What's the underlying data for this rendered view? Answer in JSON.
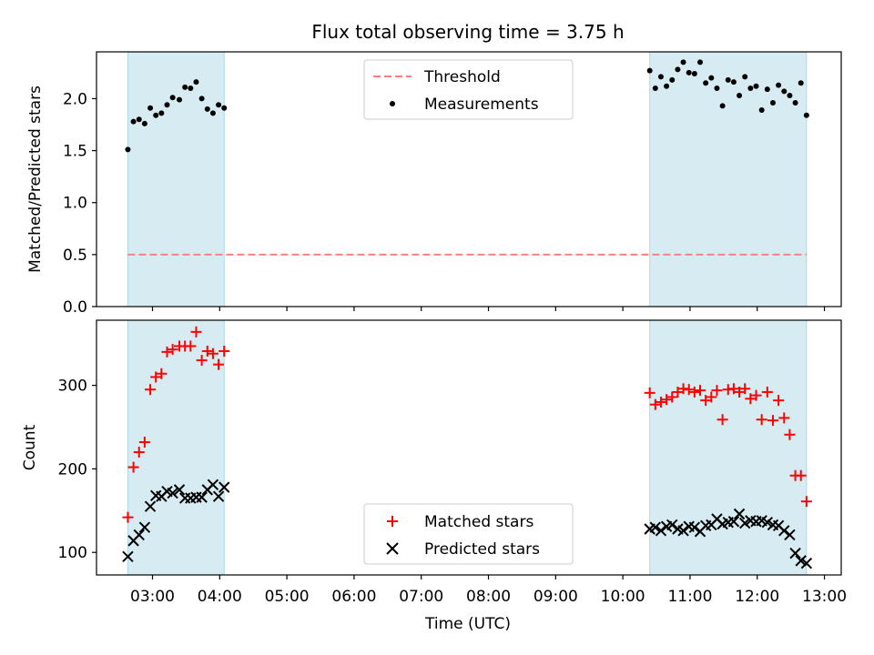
{
  "chart_data": [
    {
      "type": "scatter",
      "title": "Flux total observing time = 3.75 h",
      "ylabel": "Matched/Predicted stars",
      "xlabel": "",
      "ylim": [
        0,
        2.45
      ],
      "yticks": [
        "0.0",
        "0.5",
        "1.0",
        "1.5",
        "2.0"
      ],
      "grid": false,
      "legend": "top-center",
      "observing_windows": [
        [
          "02:38",
          "04:04"
        ],
        [
          "10:24",
          "12:44"
        ]
      ],
      "threshold": {
        "name": "Threshold",
        "value": 0.5,
        "x_range": [
          "02:38",
          "12:44"
        ],
        "color": "#ff7f7f"
      },
      "series": [
        {
          "name": "Measurements",
          "marker": "dot",
          "color": "#000000",
          "points": [
            [
              "02:38",
              1.51
            ],
            [
              "02:43",
              1.78
            ],
            [
              "02:48",
              1.8
            ],
            [
              "02:53",
              1.76
            ],
            [
              "02:58",
              1.91
            ],
            [
              "03:03",
              1.84
            ],
            [
              "03:08",
              1.86
            ],
            [
              "03:13",
              1.94
            ],
            [
              "03:18",
              2.01
            ],
            [
              "03:24",
              1.99
            ],
            [
              "03:29",
              2.11
            ],
            [
              "03:34",
              2.1
            ],
            [
              "03:39",
              2.16
            ],
            [
              "03:44",
              2.0
            ],
            [
              "03:49",
              1.9
            ],
            [
              "03:54",
              1.86
            ],
            [
              "03:59",
              1.94
            ],
            [
              "04:04",
              1.91
            ],
            [
              "10:24",
              2.27
            ],
            [
              "10:29",
              2.1
            ],
            [
              "10:34",
              2.21
            ],
            [
              "10:39",
              2.12
            ],
            [
              "10:44",
              2.18
            ],
            [
              "10:49",
              2.28
            ],
            [
              "10:54",
              2.35
            ],
            [
              "10:59",
              2.25
            ],
            [
              "11:04",
              2.24
            ],
            [
              "11:09",
              2.35
            ],
            [
              "11:14",
              2.15
            ],
            [
              "11:19",
              2.2
            ],
            [
              "11:24",
              2.1
            ],
            [
              "11:29",
              1.93
            ],
            [
              "11:34",
              2.18
            ],
            [
              "11:39",
              2.16
            ],
            [
              "11:44",
              2.03
            ],
            [
              "11:49",
              2.21
            ],
            [
              "11:54",
              2.1
            ],
            [
              "11:59",
              2.12
            ],
            [
              "12:04",
              1.89
            ],
            [
              "12:09",
              2.09
            ],
            [
              "12:14",
              1.96
            ],
            [
              "12:19",
              2.13
            ],
            [
              "12:24",
              2.07
            ],
            [
              "12:29",
              2.03
            ],
            [
              "12:34",
              1.96
            ],
            [
              "12:39",
              2.15
            ],
            [
              "12:44",
              1.84
            ]
          ]
        }
      ]
    },
    {
      "type": "scatter",
      "title": "",
      "xlabel": "Time (UTC)",
      "ylabel": "Count",
      "ylim": [
        73,
        378
      ],
      "yticks": [
        "100",
        "200",
        "300"
      ],
      "xticks": [
        "03:00",
        "04:00",
        "05:00",
        "06:00",
        "07:00",
        "08:00",
        "09:00",
        "10:00",
        "11:00",
        "12:00",
        "13:00"
      ],
      "grid": false,
      "legend": "bottom-center",
      "observing_windows": [
        [
          "02:38",
          "04:04"
        ],
        [
          "10:24",
          "12:44"
        ]
      ],
      "series": [
        {
          "name": "Matched stars",
          "marker": "plus",
          "color": "#ff0000",
          "points": [
            [
              "02:38",
              142
            ],
            [
              "02:43",
              202
            ],
            [
              "02:48",
              220
            ],
            [
              "02:53",
              232
            ],
            [
              "02:58",
              295
            ],
            [
              "03:03",
              310
            ],
            [
              "03:08",
              314
            ],
            [
              "03:13",
              340
            ],
            [
              "03:18",
              343
            ],
            [
              "03:24",
              347
            ],
            [
              "03:29",
              347
            ],
            [
              "03:34",
              347
            ],
            [
              "03:39",
              364
            ],
            [
              "03:44",
              330
            ],
            [
              "03:49",
              341
            ],
            [
              "03:54",
              338
            ],
            [
              "03:59",
              325
            ],
            [
              "04:04",
              341
            ],
            [
              "10:24",
              291
            ],
            [
              "10:29",
              277
            ],
            [
              "10:34",
              280
            ],
            [
              "10:39",
              283
            ],
            [
              "10:44",
              286
            ],
            [
              "10:49",
              292
            ],
            [
              "10:54",
              296
            ],
            [
              "10:59",
              295
            ],
            [
              "11:04",
              292
            ],
            [
              "11:09",
              294
            ],
            [
              "11:14",
              282
            ],
            [
              "11:19",
              286
            ],
            [
              "11:24",
              294
            ],
            [
              "11:29",
              259
            ],
            [
              "11:34",
              295
            ],
            [
              "11:39",
              296
            ],
            [
              "11:44",
              292
            ],
            [
              "11:49",
              296
            ],
            [
              "11:54",
              284
            ],
            [
              "11:59",
              288
            ],
            [
              "12:04",
              259
            ],
            [
              "12:09",
              292
            ],
            [
              "12:14",
              258
            ],
            [
              "12:19",
              282
            ],
            [
              "12:24",
              261
            ],
            [
              "12:29",
              241
            ],
            [
              "12:34",
              192
            ],
            [
              "12:39",
              192
            ],
            [
              "12:44",
              161
            ]
          ]
        },
        {
          "name": "Predicted stars",
          "marker": "x",
          "color": "#000000",
          "points": [
            [
              "02:38",
              95
            ],
            [
              "02:43",
              114
            ],
            [
              "02:48",
              121
            ],
            [
              "02:53",
              130
            ],
            [
              "02:58",
              155
            ],
            [
              "03:03",
              168
            ],
            [
              "03:08",
              167
            ],
            [
              "03:13",
              173
            ],
            [
              "03:18",
              171
            ],
            [
              "03:24",
              175
            ],
            [
              "03:29",
              165
            ],
            [
              "03:34",
              165
            ],
            [
              "03:39",
              166
            ],
            [
              "03:44",
              166
            ],
            [
              "03:49",
              175
            ],
            [
              "03:54",
              181
            ],
            [
              "03:59",
              167
            ],
            [
              "04:04",
              178
            ],
            [
              "10:24",
              128
            ],
            [
              "10:29",
              130
            ],
            [
              "10:34",
              126
            ],
            [
              "10:39",
              131
            ],
            [
              "10:44",
              133
            ],
            [
              "10:49",
              128
            ],
            [
              "10:54",
              126
            ],
            [
              "10:59",
              131
            ],
            [
              "11:04",
              130
            ],
            [
              "11:09",
              125
            ],
            [
              "11:14",
              132
            ],
            [
              "11:19",
              133
            ],
            [
              "11:24",
              140
            ],
            [
              "11:29",
              134
            ],
            [
              "11:34",
              136
            ],
            [
              "11:39",
              137
            ],
            [
              "11:44",
              146
            ],
            [
              "11:49",
              135
            ],
            [
              "11:54",
              138
            ],
            [
              "11:59",
              137
            ],
            [
              "12:04",
              138
            ],
            [
              "12:09",
              136
            ],
            [
              "12:14",
              133
            ],
            [
              "12:19",
              132
            ],
            [
              "12:24",
              126
            ],
            [
              "12:29",
              121
            ],
            [
              "12:34",
              99
            ],
            [
              "12:39",
              90
            ],
            [
              "12:44",
              87
            ]
          ]
        }
      ]
    }
  ],
  "window_color": "#add8e6"
}
